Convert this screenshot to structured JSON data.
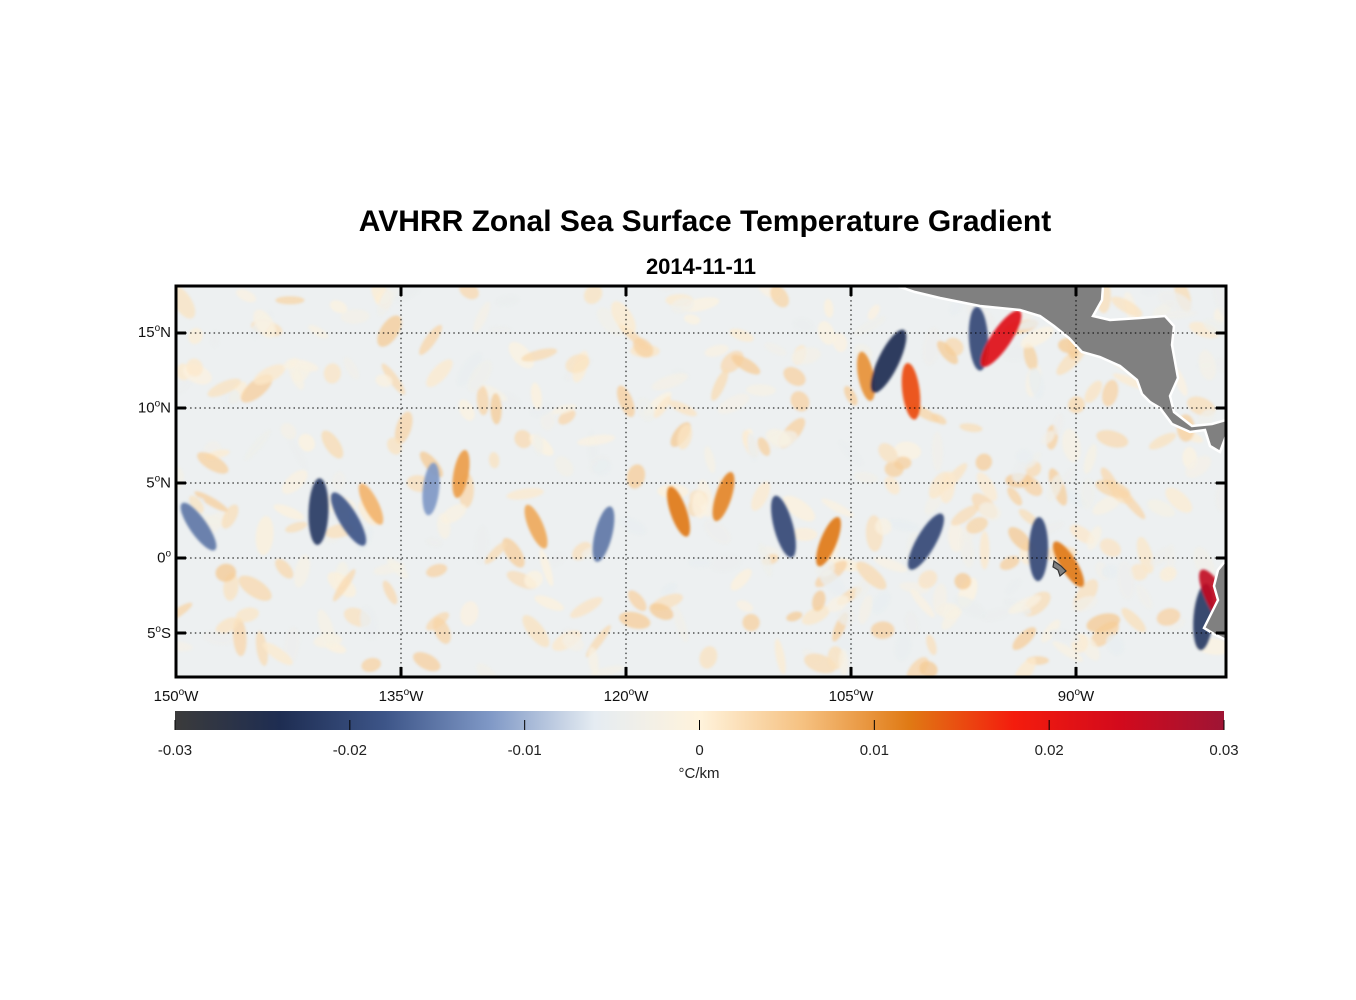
{
  "chart_data": {
    "type": "heatmap",
    "title": "AVHRR Zonal Sea Surface Temperature Gradient",
    "subtitle": "2014-11-11",
    "x_axis": {
      "range_deg": [
        -150,
        -80
      ],
      "ticks": [
        {
          "value": -150,
          "deg": "150",
          "hemi": "W"
        },
        {
          "value": -135,
          "deg": "135",
          "hemi": "W"
        },
        {
          "value": -120,
          "deg": "120",
          "hemi": "W"
        },
        {
          "value": -105,
          "deg": "105",
          "hemi": "W"
        },
        {
          "value": -90,
          "deg": "90",
          "hemi": "W"
        }
      ]
    },
    "y_axis": {
      "range_deg": [
        -8,
        18
      ],
      "ticks": [
        {
          "value": 15,
          "deg": "15",
          "hemi": "N"
        },
        {
          "value": 10,
          "deg": "10",
          "hemi": "N"
        },
        {
          "value": 5,
          "deg": "5",
          "hemi": "N"
        },
        {
          "value": 0,
          "deg": "0",
          "hemi": ""
        },
        {
          "value": -5,
          "deg": "5",
          "hemi": "S"
        }
      ]
    },
    "grid": "dotted",
    "land_color": "#808080",
    "colorbar": {
      "placement": "bottom",
      "range": [
        -0.03,
        0.03
      ],
      "tick_values": [
        -0.03,
        -0.02,
        -0.01,
        0,
        0.01,
        0.02,
        0.03
      ],
      "tick_labels": [
        "-0.03",
        "-0.02",
        "-0.01",
        "0",
        "0.01",
        "0.02",
        "0.03"
      ],
      "unit_label": "°C/km",
      "colormap": [
        "#3b3b3b",
        "#1e2d52",
        "#3d5588",
        "#7f98c6",
        "#e5ecf2",
        "#fff3dc",
        "#f5c07f",
        "#e07a14",
        "#f41c0d",
        "#d30a1c",
        "#9e1434"
      ]
    },
    "features": [
      {
        "lon": -148.5,
        "lat": 2.0,
        "value": -0.015
      },
      {
        "lon": -140.5,
        "lat": 3.0,
        "value": -0.022
      },
      {
        "lon": -138.5,
        "lat": 2.5,
        "value": -0.018
      },
      {
        "lon": -133.0,
        "lat": 4.5,
        "value": -0.012
      },
      {
        "lon": -137.0,
        "lat": 3.5,
        "value": 0.007
      },
      {
        "lon": -131.0,
        "lat": 5.5,
        "value": 0.009
      },
      {
        "lon": -126.0,
        "lat": 2.0,
        "value": 0.008
      },
      {
        "lon": -121.5,
        "lat": 1.5,
        "value": -0.015
      },
      {
        "lon": -116.5,
        "lat": 3.0,
        "value": 0.012
      },
      {
        "lon": -113.5,
        "lat": 4.0,
        "value": 0.011
      },
      {
        "lon": -109.5,
        "lat": 2.0,
        "value": -0.02
      },
      {
        "lon": -106.5,
        "lat": 1.0,
        "value": 0.012
      },
      {
        "lon": -104.0,
        "lat": 12.0,
        "value": 0.01
      },
      {
        "lon": -102.5,
        "lat": 13.0,
        "value": -0.024
      },
      {
        "lon": -101.0,
        "lat": 11.0,
        "value": 0.015
      },
      {
        "lon": -100.0,
        "lat": 1.0,
        "value": -0.02
      },
      {
        "lon": -96.5,
        "lat": 14.5,
        "value": -0.02
      },
      {
        "lon": -95.0,
        "lat": 14.5,
        "value": 0.022
      },
      {
        "lon": -92.5,
        "lat": 0.5,
        "value": -0.02
      },
      {
        "lon": -90.5,
        "lat": -0.5,
        "value": 0.012
      },
      {
        "lon": -81.5,
        "lat": -4.0,
        "value": -0.022
      },
      {
        "lon": -80.5,
        "lat": -3.0,
        "value": 0.026
      }
    ]
  }
}
